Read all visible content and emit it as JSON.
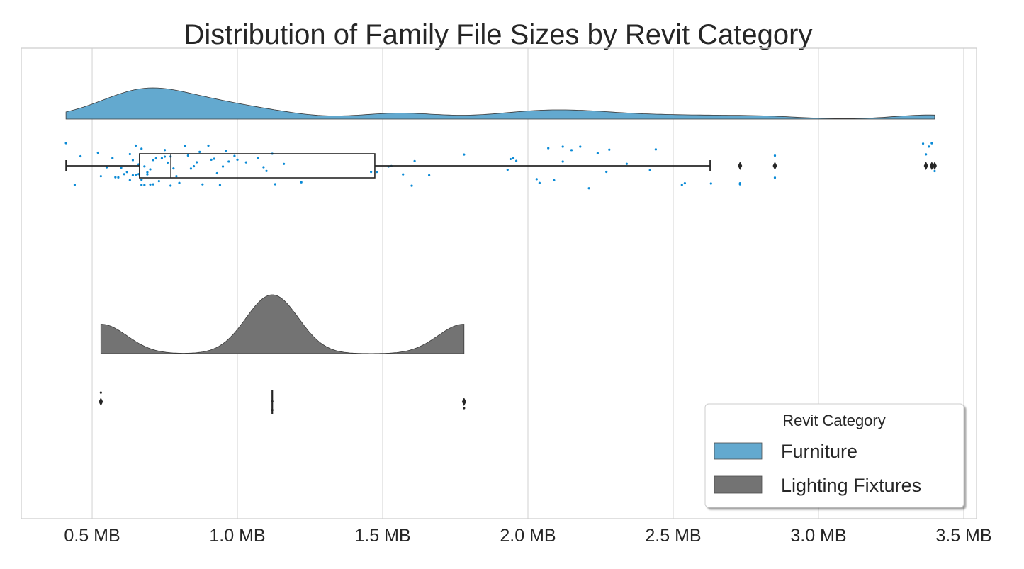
{
  "chart_data": {
    "type": "raincloud",
    "title": "Distribution of Family File Sizes by Revit Category",
    "xlabel": "",
    "ylabel": "",
    "xlim": [
      0.256,
      3.544
    ],
    "x_ticks": [
      0.5,
      1.0,
      1.5,
      2.0,
      2.5,
      3.0,
      3.5
    ],
    "x_tick_labels": [
      "0.5 MB",
      "1.0 MB",
      "1.5 MB",
      "2.0 MB",
      "2.5 MB",
      "3.0 MB",
      "3.5 MB"
    ],
    "grid": true,
    "legend": {
      "title": "Revit Category",
      "placement": "lower-right",
      "entries": [
        "Furniture",
        "Lighting Fixtures"
      ]
    },
    "series": [
      {
        "name": "Furniture",
        "color": "#63a9cf",
        "point_color": "#0a8ad6",
        "box": {
          "whisker_low": 0.41,
          "q1": 0.663,
          "median": 0.771,
          "q3": 1.473,
          "whisker_high": 2.627
        },
        "outliers": [
          2.73,
          2.85,
          3.37,
          3.39,
          3.4
        ],
        "values": [
          0.41,
          0.44,
          0.46,
          0.52,
          0.53,
          0.55,
          0.57,
          0.58,
          0.59,
          0.6,
          0.61,
          0.62,
          0.63,
          0.63,
          0.64,
          0.64,
          0.65,
          0.65,
          0.66,
          0.66,
          0.67,
          0.67,
          0.67,
          0.68,
          0.68,
          0.69,
          0.69,
          0.7,
          0.7,
          0.71,
          0.71,
          0.72,
          0.73,
          0.74,
          0.75,
          0.75,
          0.76,
          0.77,
          0.77,
          0.78,
          0.79,
          0.8,
          0.82,
          0.83,
          0.84,
          0.85,
          0.86,
          0.87,
          0.88,
          0.9,
          0.91,
          0.92,
          0.93,
          0.94,
          0.95,
          0.96,
          0.97,
          0.99,
          1.0,
          1.03,
          1.07,
          1.09,
          1.1,
          1.12,
          1.13,
          1.16,
          1.22,
          1.46,
          1.48,
          1.52,
          1.53,
          1.57,
          1.6,
          1.61,
          1.66,
          1.78,
          1.93,
          1.94,
          1.95,
          1.96,
          2.03,
          2.04,
          2.07,
          2.09,
          2.12,
          2.12,
          2.15,
          2.18,
          2.21,
          2.24,
          2.27,
          2.28,
          2.34,
          2.42,
          2.44,
          2.53,
          2.54,
          2.63,
          2.73,
          2.73,
          2.85,
          2.85,
          3.36,
          3.37,
          3.38,
          3.39,
          3.4
        ]
      },
      {
        "name": "Lighting Fixtures",
        "color": "#737373",
        "point_color": "#262626",
        "box": {
          "whisker_low": 1.12,
          "q1": 1.12,
          "median": 1.12,
          "q3": 1.12,
          "whisker_high": 1.12
        },
        "outliers": [
          0.53,
          1.78
        ],
        "values": [
          0.53,
          1.12,
          1.12,
          1.78
        ]
      }
    ]
  }
}
